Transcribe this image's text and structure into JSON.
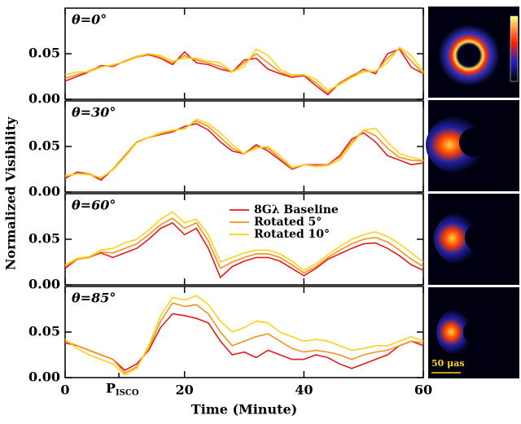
{
  "chart_data": [
    {
      "type": "line",
      "label": "θ=0°",
      "x": [
        0,
        2,
        4,
        6,
        8,
        10,
        12,
        14,
        16,
        18,
        20,
        22,
        24,
        26,
        28,
        30,
        32,
        34,
        36,
        38,
        40,
        42,
        44,
        46,
        48,
        50,
        52,
        54,
        56,
        58,
        60
      ],
      "xlim": [
        0,
        60
      ],
      "xticks": [
        0,
        20,
        40,
        60
      ],
      "ylim": [
        0,
        0.1
      ],
      "yticks": [
        {
          "value": 0,
          "label": "0.00"
        },
        0.05
      ],
      "ylabel": "Normalized Visibility",
      "series": [
        {
          "color": "#e41a1c",
          "values": [
            0.02,
            0.025,
            0.03,
            0.037,
            0.036,
            0.042,
            0.046,
            0.049,
            0.045,
            0.038,
            0.052,
            0.04,
            0.038,
            0.033,
            0.03,
            0.043,
            0.045,
            0.033,
            0.028,
            0.024,
            0.026,
            0.015,
            0.005,
            0.018,
            0.025,
            0.033,
            0.028,
            0.05,
            0.055,
            0.035,
            0.028
          ]
        },
        {
          "color": "#f0921e",
          "values": [
            0.023,
            0.027,
            0.031,
            0.036,
            0.037,
            0.042,
            0.047,
            0.05,
            0.046,
            0.04,
            0.048,
            0.043,
            0.04,
            0.036,
            0.03,
            0.04,
            0.05,
            0.04,
            0.03,
            0.025,
            0.027,
            0.018,
            0.007,
            0.018,
            0.026,
            0.032,
            0.03,
            0.045,
            0.056,
            0.042,
            0.028
          ]
        },
        {
          "color": "#ffd21a",
          "values": [
            0.027,
            0.03,
            0.03,
            0.035,
            0.038,
            0.041,
            0.046,
            0.05,
            0.048,
            0.042,
            0.045,
            0.045,
            0.042,
            0.04,
            0.03,
            0.036,
            0.055,
            0.048,
            0.033,
            0.027,
            0.027,
            0.022,
            0.01,
            0.016,
            0.024,
            0.03,
            0.031,
            0.04,
            0.057,
            0.048,
            0.03
          ]
        }
      ]
    },
    {
      "type": "line",
      "label": "θ=30°",
      "x": [
        0,
        2,
        4,
        6,
        8,
        10,
        12,
        14,
        16,
        18,
        20,
        22,
        24,
        26,
        28,
        30,
        32,
        34,
        36,
        38,
        40,
        42,
        44,
        46,
        48,
        50,
        52,
        54,
        56,
        58,
        60
      ],
      "xlim": [
        0,
        60
      ],
      "xticks": [
        0,
        20,
        40,
        60
      ],
      "ylim": [
        0,
        0.1
      ],
      "yticks": [
        {
          "value": 0,
          "label": "0.00"
        },
        0.05
      ],
      "series": [
        {
          "color": "#e41a1c",
          "values": [
            0.015,
            0.022,
            0.02,
            0.013,
            0.025,
            0.04,
            0.055,
            0.06,
            0.063,
            0.066,
            0.072,
            0.075,
            0.068,
            0.055,
            0.045,
            0.042,
            0.052,
            0.045,
            0.035,
            0.025,
            0.03,
            0.03,
            0.03,
            0.04,
            0.058,
            0.065,
            0.055,
            0.04,
            0.035,
            0.03,
            0.032
          ]
        },
        {
          "color": "#f0921e",
          "values": [
            0.017,
            0.02,
            0.02,
            0.015,
            0.025,
            0.04,
            0.055,
            0.06,
            0.064,
            0.067,
            0.07,
            0.078,
            0.072,
            0.06,
            0.048,
            0.042,
            0.05,
            0.048,
            0.037,
            0.026,
            0.03,
            0.029,
            0.03,
            0.038,
            0.055,
            0.068,
            0.062,
            0.048,
            0.038,
            0.035,
            0.034
          ]
        },
        {
          "color": "#ffd21a",
          "values": [
            0.018,
            0.02,
            0.019,
            0.016,
            0.024,
            0.038,
            0.054,
            0.06,
            0.065,
            0.068,
            0.069,
            0.08,
            0.075,
            0.065,
            0.052,
            0.042,
            0.048,
            0.05,
            0.04,
            0.027,
            0.03,
            0.028,
            0.029,
            0.035,
            0.052,
            0.068,
            0.07,
            0.055,
            0.042,
            0.038,
            0.035
          ]
        }
      ]
    },
    {
      "type": "line",
      "label": "θ=60°",
      "x": [
        0,
        2,
        4,
        6,
        8,
        10,
        12,
        14,
        16,
        18,
        20,
        22,
        24,
        26,
        28,
        30,
        32,
        34,
        36,
        38,
        40,
        42,
        44,
        46,
        48,
        50,
        52,
        54,
        56,
        58,
        60
      ],
      "xlim": [
        0,
        60
      ],
      "xticks": [
        0,
        20,
        40,
        60
      ],
      "ylim": [
        0,
        0.1
      ],
      "yticks": [
        {
          "value": 0,
          "label": "0.00"
        },
        0.05
      ],
      "series": [
        {
          "name": "8Gλ Baseline",
          "color": "#e41a1c",
          "values": [
            0.018,
            0.028,
            0.03,
            0.035,
            0.03,
            0.035,
            0.04,
            0.05,
            0.062,
            0.068,
            0.055,
            0.062,
            0.04,
            0.008,
            0.02,
            0.026,
            0.03,
            0.03,
            0.026,
            0.018,
            0.01,
            0.018,
            0.028,
            0.034,
            0.04,
            0.045,
            0.046,
            0.04,
            0.032,
            0.022,
            0.016
          ]
        },
        {
          "name": "Rotated 5°",
          "color": "#f0921e",
          "values": [
            0.02,
            0.028,
            0.03,
            0.036,
            0.035,
            0.04,
            0.045,
            0.055,
            0.066,
            0.073,
            0.062,
            0.068,
            0.048,
            0.018,
            0.025,
            0.03,
            0.034,
            0.034,
            0.03,
            0.022,
            0.013,
            0.02,
            0.03,
            0.038,
            0.045,
            0.05,
            0.052,
            0.047,
            0.038,
            0.028,
            0.02
          ]
        },
        {
          "name": "Rotated 10°",
          "color": "#ffd21a",
          "values": [
            0.022,
            0.029,
            0.031,
            0.038,
            0.04,
            0.046,
            0.05,
            0.06,
            0.072,
            0.08,
            0.068,
            0.072,
            0.055,
            0.025,
            0.03,
            0.035,
            0.038,
            0.038,
            0.034,
            0.026,
            0.016,
            0.023,
            0.033,
            0.042,
            0.05,
            0.055,
            0.058,
            0.053,
            0.045,
            0.035,
            0.025
          ]
        }
      ]
    },
    {
      "type": "line",
      "label": "θ=85°",
      "x": [
        0,
        2,
        4,
        6,
        8,
        10,
        12,
        14,
        16,
        18,
        20,
        22,
        24,
        26,
        28,
        30,
        32,
        34,
        36,
        38,
        40,
        42,
        44,
        46,
        48,
        50,
        52,
        54,
        56,
        58,
        60
      ],
      "xlim": [
        0,
        60
      ],
      "xticks": [
        0,
        20,
        40,
        60
      ],
      "ylim": [
        0,
        0.1
      ],
      "yticks": [
        {
          "value": 0,
          "label": "0.00"
        },
        0.05
      ],
      "xlabel": "Time (Minute)",
      "annotation": {
        "text": "P",
        "subscript": "ISCO",
        "x": 9
      },
      "series": [
        {
          "color": "#e41a1c",
          "values": [
            0.038,
            0.035,
            0.03,
            0.025,
            0.02,
            0.008,
            0.015,
            0.03,
            0.055,
            0.07,
            0.068,
            0.065,
            0.06,
            0.04,
            0.025,
            0.028,
            0.022,
            0.03,
            0.025,
            0.02,
            0.02,
            0.025,
            0.022,
            0.015,
            0.01,
            0.015,
            0.02,
            0.025,
            0.035,
            0.04,
            0.035
          ]
        },
        {
          "color": "#f0921e",
          "values": [
            0.04,
            0.035,
            0.03,
            0.025,
            0.02,
            0.005,
            0.012,
            0.032,
            0.062,
            0.082,
            0.078,
            0.08,
            0.07,
            0.05,
            0.035,
            0.04,
            0.045,
            0.048,
            0.04,
            0.032,
            0.028,
            0.03,
            0.028,
            0.025,
            0.02,
            0.025,
            0.028,
            0.03,
            0.035,
            0.04,
            0.038
          ]
        },
        {
          "color": "#ffd21a",
          "values": [
            0.042,
            0.032,
            0.025,
            0.02,
            0.015,
            0.003,
            0.01,
            0.035,
            0.068,
            0.088,
            0.085,
            0.09,
            0.08,
            0.062,
            0.05,
            0.055,
            0.062,
            0.06,
            0.05,
            0.045,
            0.04,
            0.042,
            0.04,
            0.035,
            0.03,
            0.032,
            0.035,
            0.035,
            0.04,
            0.045,
            0.04
          ]
        }
      ]
    }
  ],
  "images": {
    "scale_bar_label": "50 μas"
  }
}
